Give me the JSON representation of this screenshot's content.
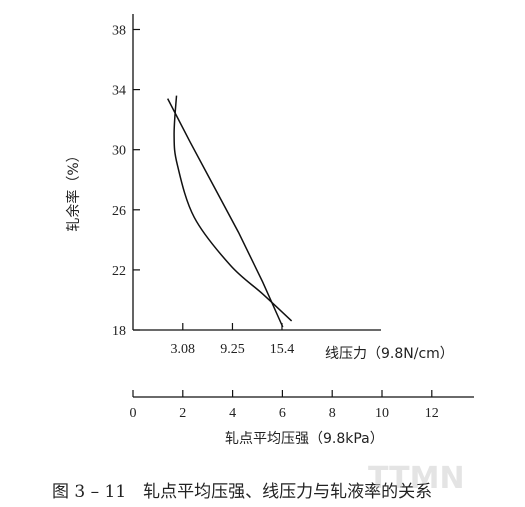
{
  "chart_data": {
    "type": "line",
    "caption": "图 3 – 11　轧点平均压强、线压力与轧液率的关系",
    "y_axis": {
      "label": "轧余率（%）",
      "ticks": [
        18,
        22,
        26,
        30,
        34,
        38
      ],
      "range": [
        18,
        38
      ]
    },
    "x_axis_upper": {
      "label": "线压力（9.8N/cm）",
      "ticks": [
        "3.08",
        "9.25",
        "15.4"
      ],
      "tick_values": [
        3.08,
        9.25,
        15.4
      ],
      "range": [
        0,
        28
      ]
    },
    "x_axis_lower": {
      "label": "轧点平均压强（9.8kPa）",
      "ticks": [
        0,
        2,
        4,
        6,
        8,
        10,
        12
      ],
      "range": [
        0,
        13.8
      ]
    },
    "series": [
      {
        "axis": "x_axis_upper",
        "x": [
          1.2,
          4.0,
          7.0,
          10.0,
          13.0,
          15.5
        ],
        "y": [
          33.4,
          30.5,
          27.5,
          24.5,
          21.2,
          18.2
        ]
      },
      {
        "axis": "x_axis_upper",
        "x": [
          2.3,
          2.0,
          2.4,
          4.5,
          9.0,
          13.0,
          16.6
        ],
        "y": [
          33.6,
          31.0,
          29.0,
          25.5,
          22.3,
          20.4,
          18.6
        ]
      }
    ],
    "watermark": "TTMN"
  }
}
